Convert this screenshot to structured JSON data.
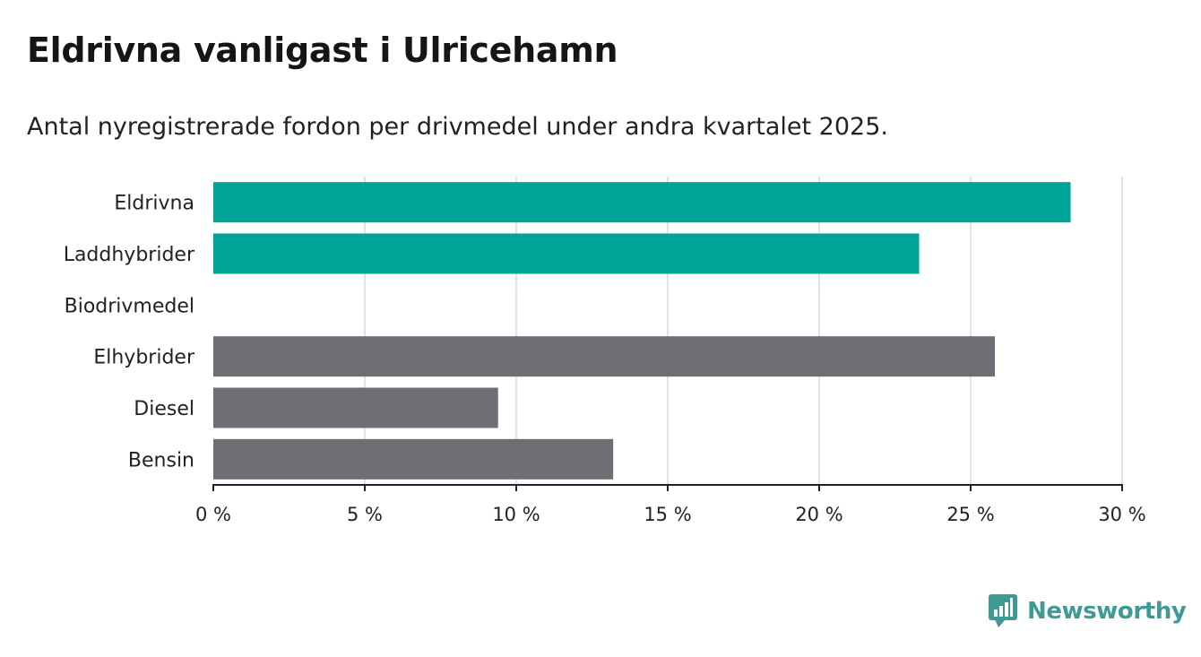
{
  "title": "Eldrivna vanligast i Ulricehamn",
  "subtitle": "Antal nyregistrerade fordon per drivmedel under andra kvartalet 2025.",
  "brand": {
    "name": "Newsworthy",
    "color": "#3d9a94",
    "icon": "chat-bubble-bar-chart-icon"
  },
  "colors": {
    "highlight": "#00a398",
    "default": "#6f6e75",
    "grid": "#d9d9d9",
    "axis": "#222222"
  },
  "chart_data": {
    "type": "bar",
    "orientation": "horizontal",
    "title": "Eldrivna vanligast i Ulricehamn",
    "subtitle": "Antal nyregistrerade fordon per drivmedel under andra kvartalet 2025.",
    "xlabel": "",
    "ylabel": "",
    "unit": "%",
    "categories": [
      "Eldrivna",
      "Laddhybrider",
      "Biodrivmedel",
      "Elhybrider",
      "Diesel",
      "Bensin"
    ],
    "values": [
      28.3,
      23.3,
      0,
      25.8,
      9.4,
      13.2
    ],
    "highlighted": [
      true,
      true,
      true,
      false,
      false,
      false
    ],
    "xlim": [
      0,
      30
    ],
    "ticks": [
      0,
      5,
      10,
      15,
      20,
      25,
      30
    ],
    "tick_labels": [
      "0 %",
      "5 %",
      "10 %",
      "15 %",
      "20 %",
      "25 %",
      "30 %"
    ],
    "grid": true,
    "legend": "none"
  }
}
